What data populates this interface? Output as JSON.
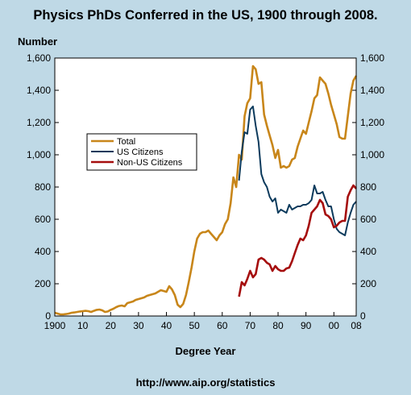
{
  "header": {
    "title": "Physics PhDs Conferred in the US, 1900 through 2008.",
    "ylabel": "Number",
    "xlabel": "Degree Year",
    "footer": "http://www.aip.org/statistics"
  },
  "colors": {
    "total": "#c8861a",
    "us_citizens": "#0c3a5c",
    "non_us": "#a50d0d",
    "background": "#bfd9e6",
    "plot_bg": "#ffffff"
  },
  "chart_data": {
    "type": "line",
    "title": "Physics PhDs Conferred in the US, 1900 through 2008.",
    "xlabel": "Degree Year",
    "ylabel": "Number",
    "xlim": [
      1900,
      2008
    ],
    "ylim": [
      0,
      1600
    ],
    "grid": false,
    "legend": "left-middle",
    "x_ticks": [
      {
        "value": 1900,
        "label": "1900"
      },
      {
        "value": 1910,
        "label": "10"
      },
      {
        "value": 1920,
        "label": "20"
      },
      {
        "value": 1930,
        "label": "30"
      },
      {
        "value": 1940,
        "label": "40"
      },
      {
        "value": 1950,
        "label": "50"
      },
      {
        "value": 1960,
        "label": "60"
      },
      {
        "value": 1970,
        "label": "70"
      },
      {
        "value": 1980,
        "label": "80"
      },
      {
        "value": 1990,
        "label": "90"
      },
      {
        "value": 2000,
        "label": "00"
      },
      {
        "value": 2008,
        "label": "08"
      }
    ],
    "y_ticks": [
      {
        "value": 0,
        "label": "0"
      },
      {
        "value": 200,
        "label": "200"
      },
      {
        "value": 400,
        "label": "400"
      },
      {
        "value": 600,
        "label": "600"
      },
      {
        "value": 800,
        "label": "800"
      },
      {
        "value": 1000,
        "label": "1,000"
      },
      {
        "value": 1200,
        "label": "1,200"
      },
      {
        "value": 1400,
        "label": "1,400"
      },
      {
        "value": 1600,
        "label": "1,600"
      }
    ],
    "series": [
      {
        "name": "Total",
        "color": "#c8861a",
        "points": [
          [
            1900,
            20
          ],
          [
            1901,
            15
          ],
          [
            1902,
            10
          ],
          [
            1903,
            10
          ],
          [
            1904,
            12
          ],
          [
            1905,
            15
          ],
          [
            1906,
            20
          ],
          [
            1907,
            22
          ],
          [
            1908,
            25
          ],
          [
            1909,
            28
          ],
          [
            1910,
            30
          ],
          [
            1911,
            32
          ],
          [
            1912,
            30
          ],
          [
            1913,
            25
          ],
          [
            1914,
            32
          ],
          [
            1915,
            38
          ],
          [
            1916,
            40
          ],
          [
            1917,
            35
          ],
          [
            1918,
            25
          ],
          [
            1919,
            28
          ],
          [
            1920,
            38
          ],
          [
            1921,
            45
          ],
          [
            1922,
            55
          ],
          [
            1923,
            62
          ],
          [
            1924,
            65
          ],
          [
            1925,
            60
          ],
          [
            1926,
            80
          ],
          [
            1927,
            85
          ],
          [
            1928,
            90
          ],
          [
            1929,
            100
          ],
          [
            1930,
            105
          ],
          [
            1931,
            110
          ],
          [
            1932,
            115
          ],
          [
            1933,
            125
          ],
          [
            1934,
            130
          ],
          [
            1935,
            135
          ],
          [
            1936,
            140
          ],
          [
            1937,
            150
          ],
          [
            1938,
            160
          ],
          [
            1939,
            155
          ],
          [
            1940,
            150
          ],
          [
            1941,
            185
          ],
          [
            1942,
            165
          ],
          [
            1943,
            130
          ],
          [
            1944,
            70
          ],
          [
            1945,
            55
          ],
          [
            1946,
            75
          ],
          [
            1947,
            130
          ],
          [
            1948,
            210
          ],
          [
            1949,
            300
          ],
          [
            1950,
            400
          ],
          [
            1951,
            480
          ],
          [
            1952,
            510
          ],
          [
            1953,
            520
          ],
          [
            1954,
            520
          ],
          [
            1955,
            530
          ],
          [
            1956,
            510
          ],
          [
            1957,
            490
          ],
          [
            1958,
            470
          ],
          [
            1959,
            500
          ],
          [
            1960,
            520
          ],
          [
            1961,
            570
          ],
          [
            1962,
            600
          ],
          [
            1963,
            700
          ],
          [
            1964,
            860
          ],
          [
            1965,
            800
          ],
          [
            1966,
            1000
          ],
          [
            1967,
            970
          ],
          [
            1968,
            1240
          ],
          [
            1969,
            1320
          ],
          [
            1970,
            1350
          ],
          [
            1971,
            1550
          ],
          [
            1972,
            1530
          ],
          [
            1973,
            1440
          ],
          [
            1974,
            1450
          ],
          [
            1975,
            1250
          ],
          [
            1976,
            1180
          ],
          [
            1977,
            1120
          ],
          [
            1978,
            1060
          ],
          [
            1979,
            980
          ],
          [
            1980,
            1030
          ],
          [
            1981,
            920
          ],
          [
            1982,
            930
          ],
          [
            1983,
            920
          ],
          [
            1984,
            930
          ],
          [
            1985,
            970
          ],
          [
            1986,
            980
          ],
          [
            1987,
            1050
          ],
          [
            1988,
            1100
          ],
          [
            1989,
            1150
          ],
          [
            1990,
            1130
          ],
          [
            1991,
            1200
          ],
          [
            1992,
            1270
          ],
          [
            1993,
            1350
          ],
          [
            1994,
            1370
          ],
          [
            1995,
            1480
          ],
          [
            1996,
            1460
          ],
          [
            1997,
            1440
          ],
          [
            1998,
            1380
          ],
          [
            1999,
            1310
          ],
          [
            2000,
            1250
          ],
          [
            2001,
            1190
          ],
          [
            2002,
            1110
          ],
          [
            2003,
            1100
          ],
          [
            2004,
            1100
          ],
          [
            2005,
            1240
          ],
          [
            2006,
            1380
          ],
          [
            2007,
            1460
          ],
          [
            2008,
            1490
          ]
        ]
      },
      {
        "name": "US Citizens",
        "color": "#0c3a5c",
        "points": [
          [
            1966,
            840
          ],
          [
            1967,
            1020
          ],
          [
            1968,
            1140
          ],
          [
            1969,
            1130
          ],
          [
            1970,
            1280
          ],
          [
            1971,
            1300
          ],
          [
            1972,
            1180
          ],
          [
            1973,
            1080
          ],
          [
            1974,
            880
          ],
          [
            1975,
            830
          ],
          [
            1976,
            800
          ],
          [
            1977,
            740
          ],
          [
            1978,
            710
          ],
          [
            1979,
            730
          ],
          [
            1980,
            640
          ],
          [
            1981,
            660
          ],
          [
            1982,
            650
          ],
          [
            1983,
            640
          ],
          [
            1984,
            690
          ],
          [
            1985,
            660
          ],
          [
            1986,
            670
          ],
          [
            1987,
            680
          ],
          [
            1988,
            680
          ],
          [
            1989,
            690
          ],
          [
            1990,
            690
          ],
          [
            1991,
            700
          ],
          [
            1992,
            720
          ],
          [
            1993,
            810
          ],
          [
            1994,
            760
          ],
          [
            1995,
            760
          ],
          [
            1996,
            770
          ],
          [
            1997,
            720
          ],
          [
            1998,
            680
          ],
          [
            1999,
            680
          ],
          [
            2000,
            600
          ],
          [
            2001,
            540
          ],
          [
            2002,
            520
          ],
          [
            2003,
            510
          ],
          [
            2004,
            500
          ],
          [
            2005,
            580
          ],
          [
            2006,
            640
          ],
          [
            2007,
            690
          ],
          [
            2008,
            710
          ]
        ]
      },
      {
        "name": "Non-US Citizens",
        "color": "#a50d0d",
        "points": [
          [
            1966,
            120
          ],
          [
            1967,
            210
          ],
          [
            1968,
            190
          ],
          [
            1969,
            230
          ],
          [
            1970,
            280
          ],
          [
            1971,
            240
          ],
          [
            1972,
            260
          ],
          [
            1973,
            350
          ],
          [
            1974,
            360
          ],
          [
            1975,
            350
          ],
          [
            1976,
            330
          ],
          [
            1977,
            320
          ],
          [
            1978,
            280
          ],
          [
            1979,
            310
          ],
          [
            1980,
            290
          ],
          [
            1981,
            280
          ],
          [
            1982,
            280
          ],
          [
            1983,
            295
          ],
          [
            1984,
            300
          ],
          [
            1985,
            340
          ],
          [
            1986,
            390
          ],
          [
            1987,
            440
          ],
          [
            1988,
            480
          ],
          [
            1989,
            470
          ],
          [
            1990,
            500
          ],
          [
            1991,
            560
          ],
          [
            1992,
            640
          ],
          [
            1993,
            660
          ],
          [
            1994,
            680
          ],
          [
            1995,
            720
          ],
          [
            1996,
            700
          ],
          [
            1997,
            630
          ],
          [
            1998,
            620
          ],
          [
            1999,
            600
          ],
          [
            2000,
            550
          ],
          [
            2001,
            560
          ],
          [
            2002,
            580
          ],
          [
            2003,
            590
          ],
          [
            2004,
            590
          ],
          [
            2005,
            740
          ],
          [
            2006,
            780
          ],
          [
            2007,
            810
          ],
          [
            2008,
            790
          ]
        ]
      }
    ]
  }
}
